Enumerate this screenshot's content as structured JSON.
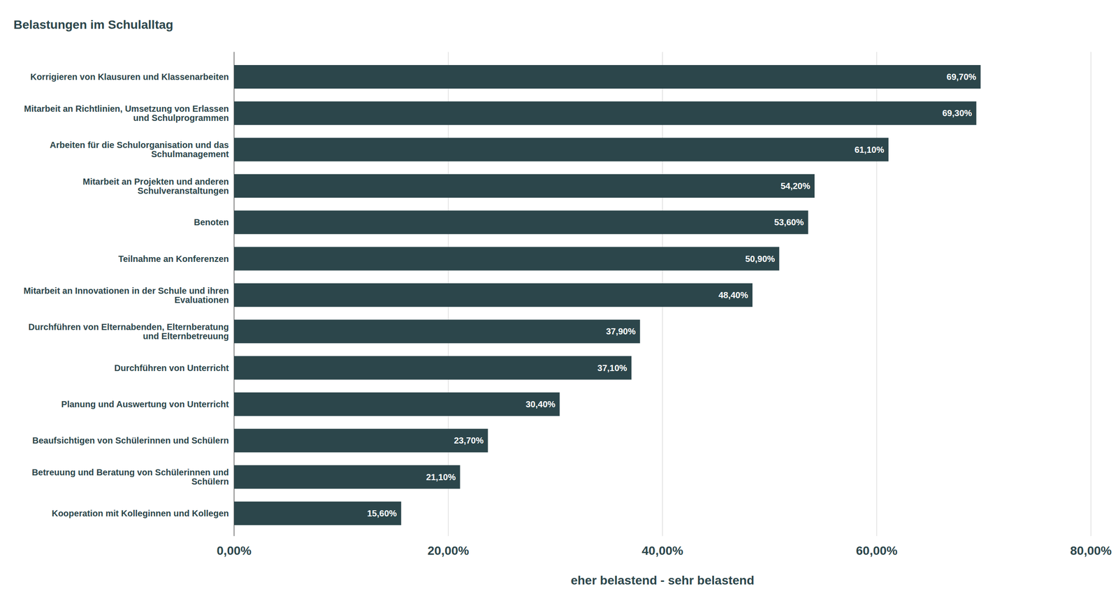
{
  "chart_data": {
    "type": "bar",
    "orientation": "horizontal",
    "title": "Belastungen im Schulalltag",
    "x_label": "eher belastend - sehr belastend",
    "categories": [
      "Korrigieren von Klausuren und Klassenarbeiten",
      "Mitarbeit an Richtlinien, Umsetzung von Erlassen und Schulprogrammen",
      "Arbeiten für die Schulorganisation und das Schulmanagement",
      "Mitarbeit an Projekten und anderen Schulveranstaltungen",
      "Benoten",
      "Teilnahme an Konferenzen",
      "Mitarbeit an Innovationen in der Schule und ihren Evaluationen",
      "Durchführen von Elternabenden, Elternberatung und Elternbetreuung",
      "Durchführen von Unterricht",
      "Planung und Auswertung von Unterricht",
      "Beaufsichtigen von Schülerinnen und Schülern",
      "Betreuung und Beratung von Schülerinnen und Schülern",
      "Kooperation mit Kolleginnen und Kollegen"
    ],
    "values": [
      69.7,
      69.3,
      61.1,
      54.2,
      53.6,
      50.9,
      48.4,
      37.9,
      37.1,
      30.4,
      23.7,
      21.1,
      15.6
    ],
    "value_labels": [
      "69,70%",
      "69,30%",
      "61,10%",
      "54,20%",
      "53,60%",
      "50,90%",
      "48,40%",
      "37,90%",
      "37,10%",
      "30,40%",
      "23,70%",
      "21,10%",
      "15,60%"
    ],
    "color": "#2c464b",
    "xlim": [
      0,
      80
    ],
    "xticks": [
      {
        "value": 0,
        "label": "0,00%"
      },
      {
        "value": 20,
        "label": "20,00%"
      },
      {
        "value": 40,
        "label": "40,00%"
      },
      {
        "value": 60,
        "label": "60,00%"
      },
      {
        "value": 80,
        "label": "80,00%"
      }
    ],
    "grid": true,
    "data_labels": true
  }
}
